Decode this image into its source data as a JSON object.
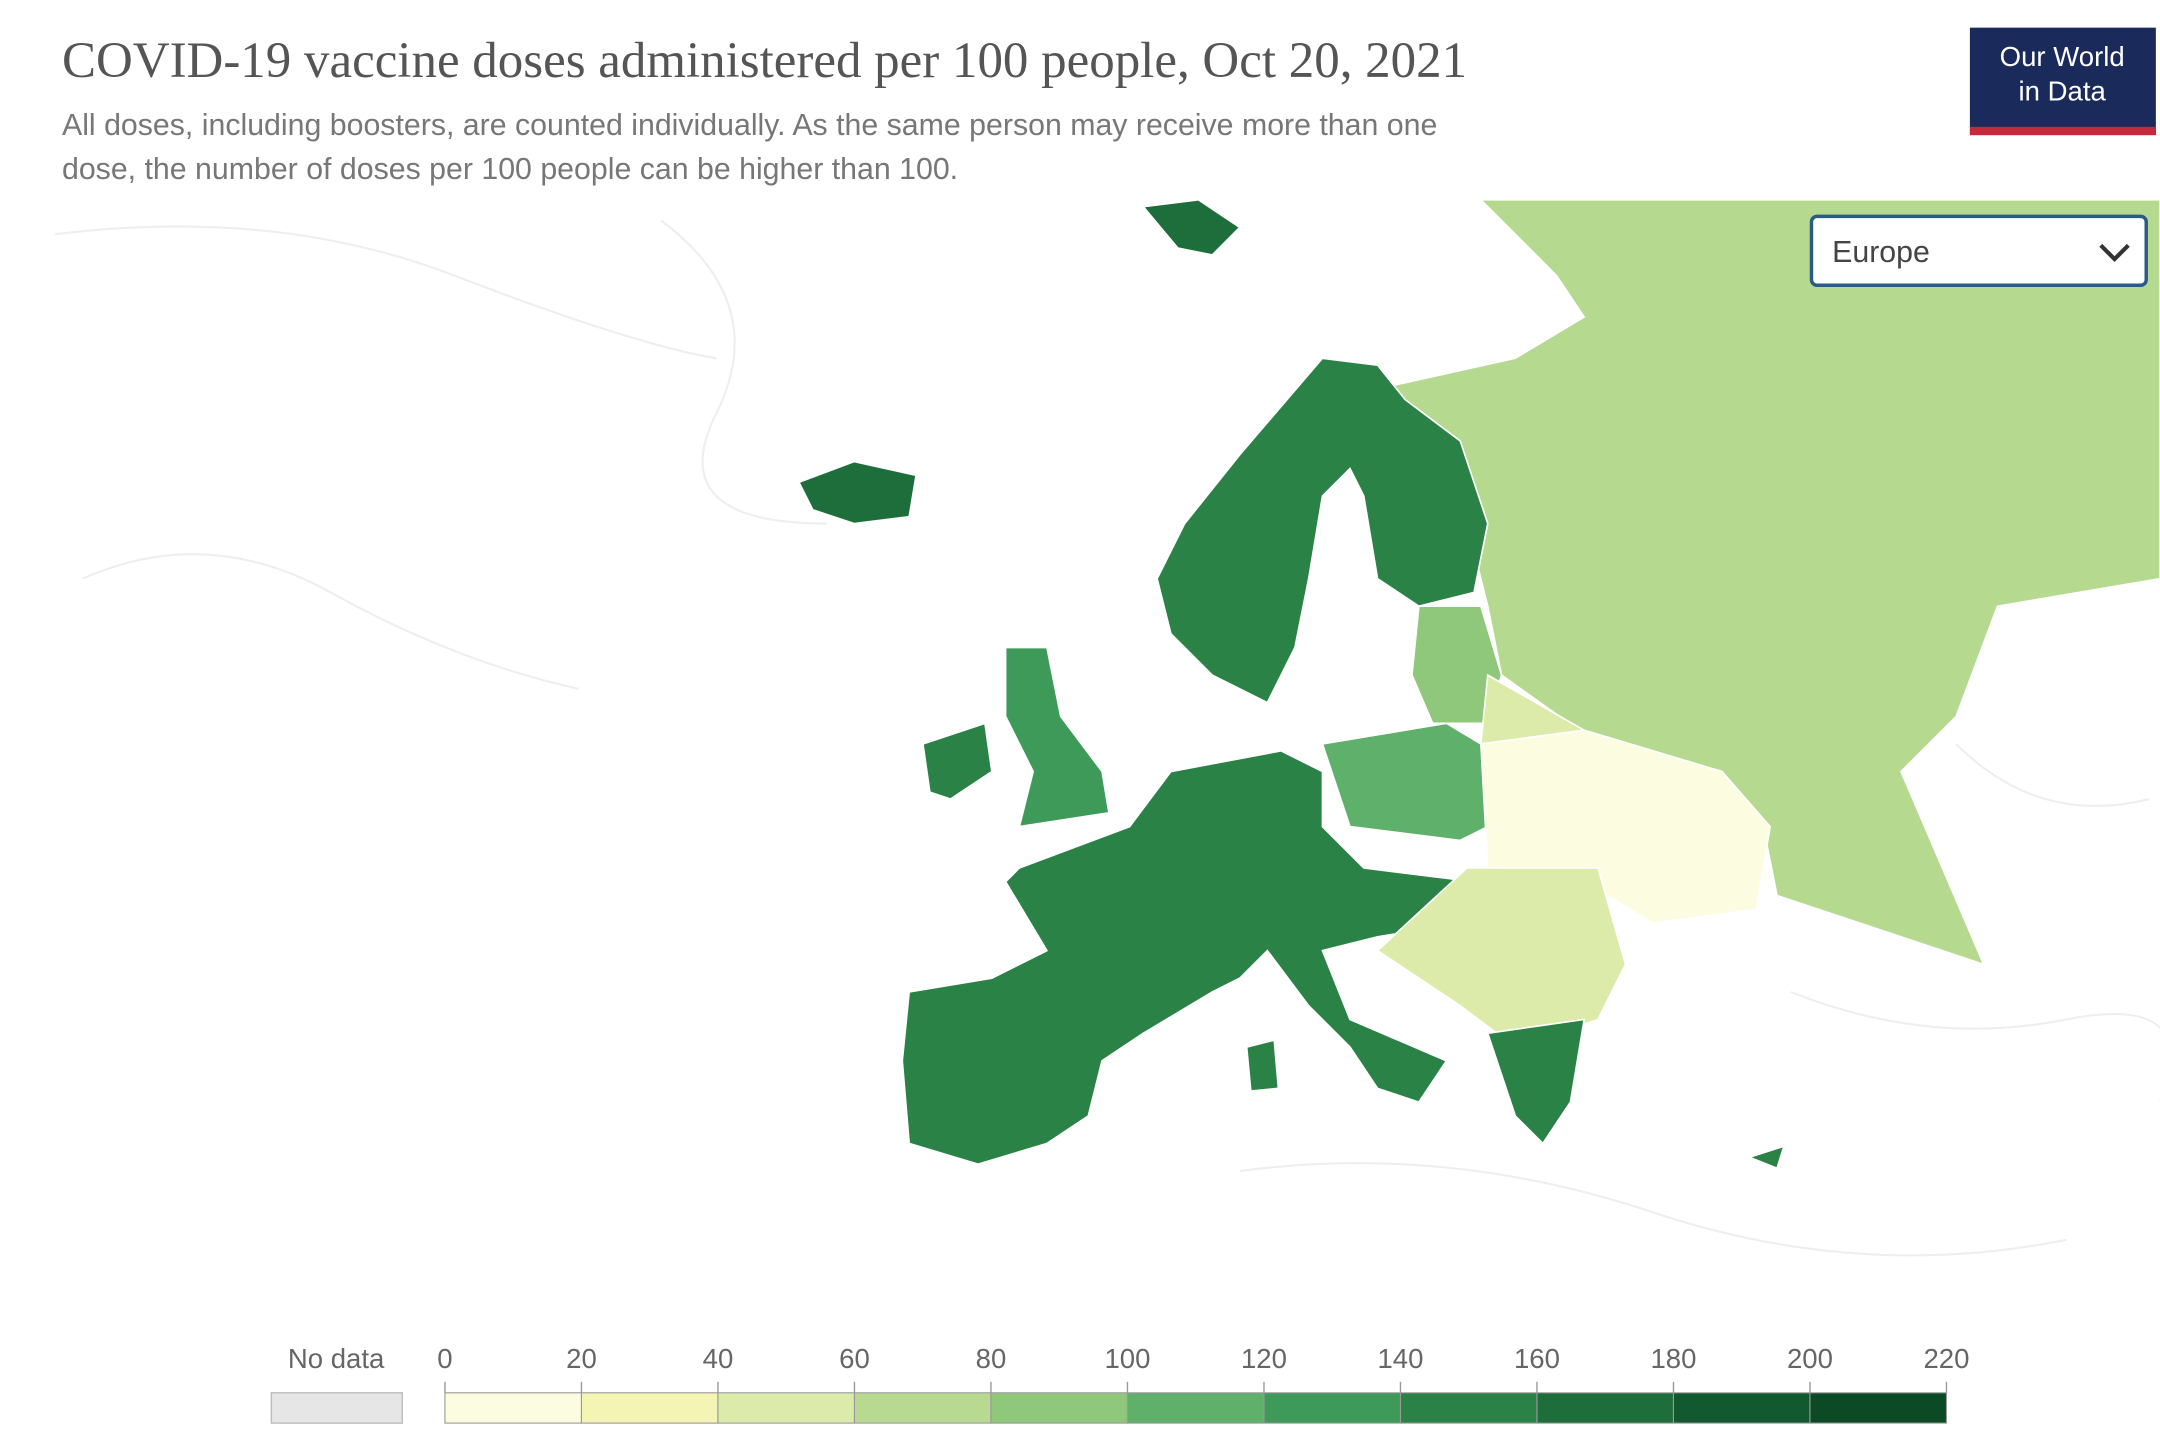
{
  "header": {
    "title": "COVID-19 vaccine doses administered per 100 people, Oct 20, 2021",
    "subtitle_lines": [
      "All doses, including boosters, are counted individually. As the same person may receive more than one",
      "dose, the number of doses per 100 people can be higher than 100."
    ],
    "logo_lines": [
      "Our World",
      "in Data"
    ]
  },
  "region_select": "Europe",
  "legend": {
    "no_data_label": "No data",
    "no_data_color": "#e6e6e6",
    "ticks": [
      0,
      20,
      40,
      60,
      80,
      100,
      120,
      140,
      160,
      180,
      200,
      220
    ],
    "colors": [
      "#fcfde0",
      "#f4f5b5",
      "#dcebaa",
      "#b8da90",
      "#8fc87a",
      "#5fb06a",
      "#3e9a58",
      "#2b8247",
      "#1d6e3b",
      "#13592f",
      "#0c4a26"
    ]
  }
}
